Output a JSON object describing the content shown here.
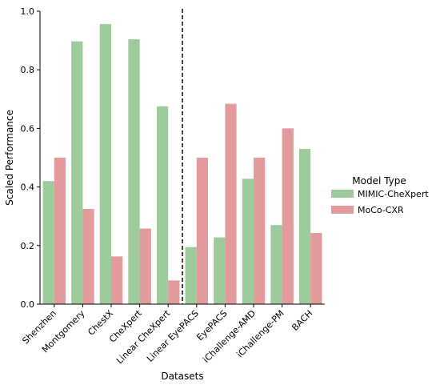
{
  "chart_data": {
    "type": "bar",
    "title": "",
    "xlabel": "Datasets",
    "ylabel": "Scaled Performance",
    "ylim": [
      0,
      1.0
    ],
    "yticks": [
      "0.0",
      "0.2",
      "0.4",
      "0.6",
      "0.8",
      "1.0"
    ],
    "grid": false,
    "categories": [
      "Shenzhen",
      "Montgomery",
      "ChestX",
      "CheXpert",
      "Linear CheXpert",
      "Linear EyePACS",
      "EyePACS",
      "iChallenge-AMD",
      "iChallenge-PM",
      "BACH"
    ],
    "series": [
      {
        "name": "MIMIC-CheXpert",
        "color": "#9dcb9b",
        "values": [
          0.42,
          0.897,
          0.956,
          0.904,
          0.675,
          0.195,
          0.228,
          0.428,
          0.27,
          0.53
        ]
      },
      {
        "name": "MoCo-CXR",
        "color": "#e29a9c",
        "values": [
          0.5,
          0.325,
          0.163,
          0.258,
          0.081,
          0.5,
          0.684,
          0.5,
          0.6,
          0.243
        ]
      }
    ],
    "divider_after_category": "Linear CheXpert",
    "legend": {
      "title": "Model Type",
      "placement": "right"
    }
  }
}
